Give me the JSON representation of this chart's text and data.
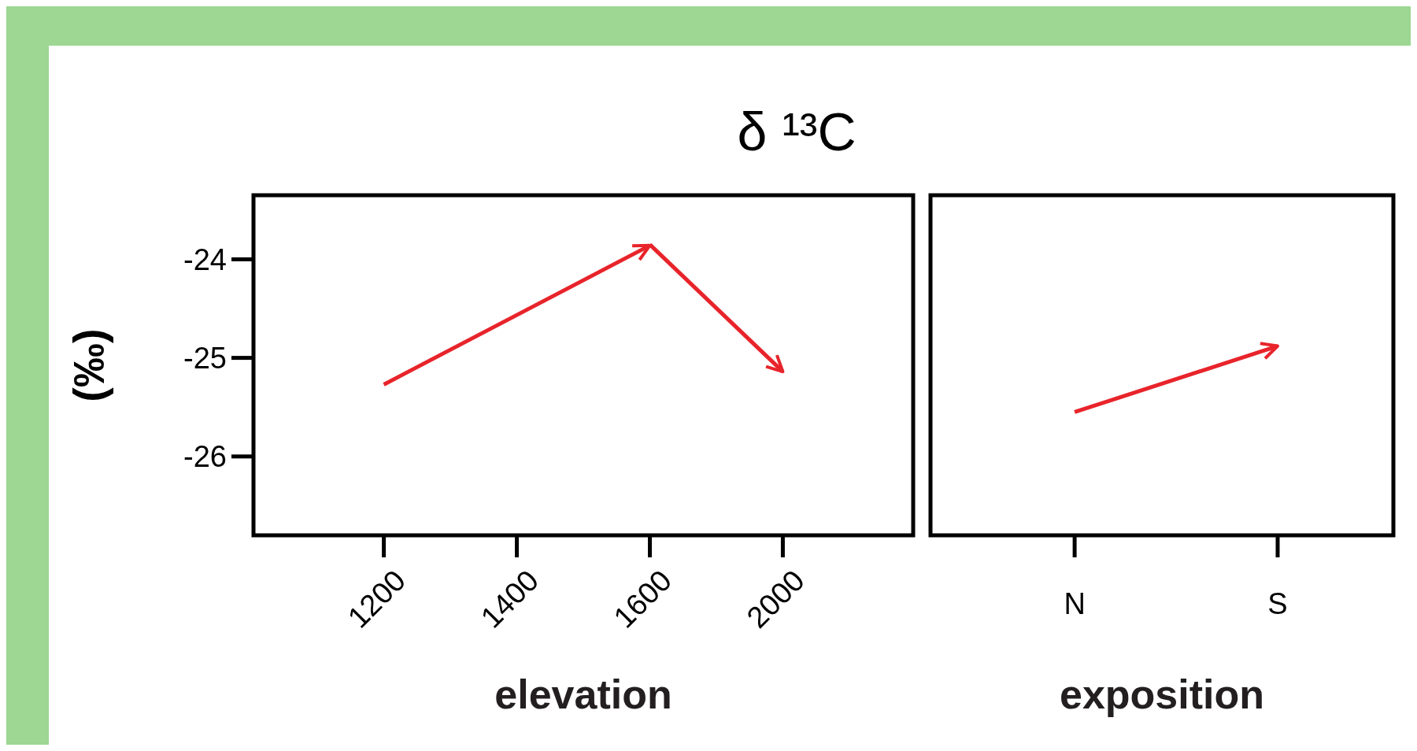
{
  "chart_data": [
    {
      "type": "line",
      "title": "δ ¹³C",
      "xlabel": "elevation",
      "ylabel": "(‰)",
      "categories": [
        "1200",
        "1400",
        "1600",
        "2000"
      ],
      "series": [
        {
          "color": "#e8242b",
          "values": [
            -25.27,
            null,
            -23.86,
            null
          ]
        },
        {
          "color": "#e8242b",
          "values": [
            null,
            null,
            -23.85,
            -25.14
          ]
        }
      ],
      "ylim": [
        -26.8,
        -23.35
      ],
      "yticks": [
        -26,
        -25,
        -24
      ],
      "grid": false
    },
    {
      "type": "line",
      "xlabel": "exposition",
      "categories": [
        "N",
        "S"
      ],
      "series": [
        {
          "color": "#e8242b",
          "values": [
            -25.55,
            -24.88
          ]
        }
      ],
      "ylim": [
        -26.8,
        -23.35
      ],
      "yticks": [
        -26,
        -25,
        -24
      ],
      "grid": false,
      "tick_labels": "x"
    }
  ]
}
